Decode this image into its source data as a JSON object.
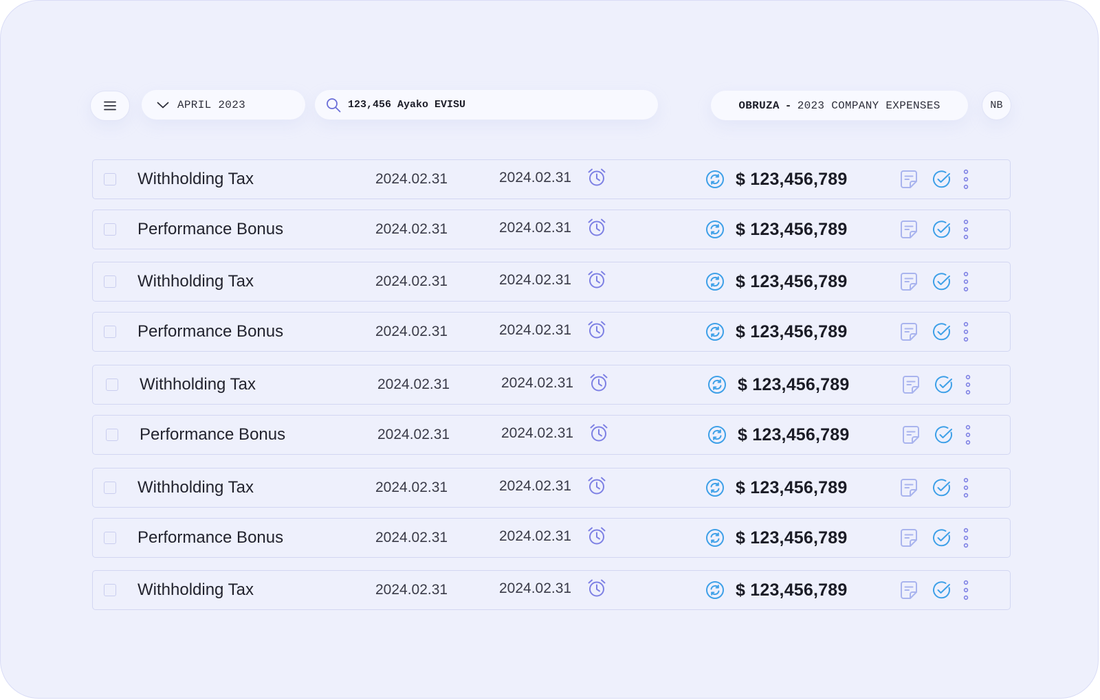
{
  "header": {
    "month_label": "APRIL 2023",
    "search_value": "123,456 Ayako EVISU",
    "title_brand": "OBRUZA",
    "title_separator": "-",
    "title_rest": "2023 COMPANY EXPENSES",
    "avatar_initials": "NB"
  },
  "colors": {
    "background": "#eef0fc",
    "border": "#d2d6f2",
    "icon_purple": "#7d80e4",
    "icon_blue": "#3ea0e8",
    "icon_note": "#a9b4ee"
  },
  "rows": [
    {
      "name": "Withholding Tax",
      "date1": "2024.02.31",
      "date2": "2024.02.31",
      "amount": "$ 123,456,789"
    },
    {
      "name": "Performance Bonus",
      "date1": "2024.02.31",
      "date2": "2024.02.31",
      "amount": "$ 123,456,789"
    },
    {
      "name": "Withholding Tax",
      "date1": "2024.02.31",
      "date2": "2024.02.31",
      "amount": "$ 123,456,789"
    },
    {
      "name": "Performance Bonus",
      "date1": "2024.02.31",
      "date2": "2024.02.31",
      "amount": "$ 123,456,789"
    },
    {
      "name": "Withholding Tax",
      "date1": "2024.02.31",
      "date2": "2024.02.31",
      "amount": "$ 123,456,789"
    },
    {
      "name": "Performance Bonus",
      "date1": "2024.02.31",
      "date2": "2024.02.31",
      "amount": "$ 123,456,789"
    },
    {
      "name": "Withholding Tax",
      "date1": "2024.02.31",
      "date2": "2024.02.31",
      "amount": "$ 123,456,789"
    },
    {
      "name": "Performance Bonus",
      "date1": "2024.02.31",
      "date2": "2024.02.31",
      "amount": "$ 123,456,789"
    },
    {
      "name": "Withholding Tax",
      "date1": "2024.02.31",
      "date2": "2024.02.31",
      "amount": "$ 123,456,789"
    }
  ],
  "row_icons": {
    "alarm": "alarm-clock-icon",
    "sync": "sync-icon",
    "note": "note-icon",
    "approve": "check-circle-icon",
    "more": "more-vertical-icon"
  }
}
